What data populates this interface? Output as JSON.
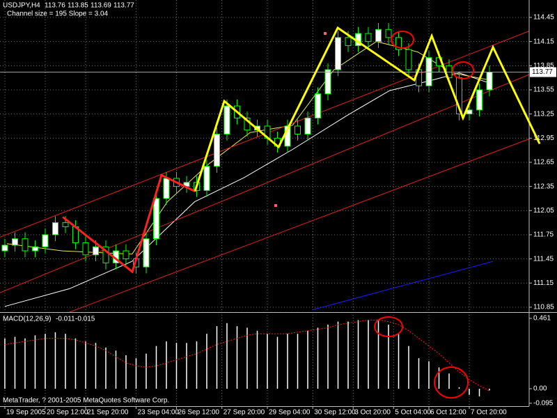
{
  "chart_data": {
    "type": "candlestick",
    "title": "USDJPY,H4",
    "header_values": [
      113.76,
      113.85,
      113.69,
      113.77
    ],
    "subtitle": "Channel size = 195 Slope = 3.04",
    "footer": "MetaTrader, ? 2001-2005 MetaQuotes Software Corp.",
    "up_color": "#ffffff",
    "down_color": "#000000",
    "wick_color": "#00ff00",
    "grid": true,
    "x": [
      0,
      1,
      2,
      3,
      4,
      5,
      6,
      7,
      8,
      9,
      10,
      11,
      12,
      13,
      14,
      15,
      16,
      17,
      18,
      19,
      20,
      21,
      22,
      23,
      24,
      25,
      26,
      27,
      28,
      29,
      30,
      31,
      32,
      33,
      34,
      35,
      36,
      37,
      38,
      39,
      40,
      41,
      42,
      43,
      44,
      45,
      46,
      47,
      48
    ],
    "open": [
      111.55,
      111.62,
      111.7,
      111.55,
      111.6,
      111.75,
      111.9,
      111.85,
      111.65,
      111.5,
      111.6,
      111.4,
      111.55,
      111.45,
      111.35,
      111.7,
      112.2,
      112.45,
      112.35,
      112.4,
      112.3,
      112.6,
      113.0,
      113.35,
      113.2,
      113.05,
      113.1,
      112.95,
      112.85,
      113.1,
      113.0,
      113.2,
      113.5,
      113.8,
      114.2,
      114.1,
      114.25,
      114.15,
      114.3,
      114.2,
      114.05,
      113.8,
      113.6,
      113.95,
      113.85,
      113.7,
      113.25,
      113.3,
      113.55
    ],
    "high": [
      111.7,
      111.78,
      111.78,
      111.68,
      111.83,
      111.98,
      111.98,
      111.93,
      111.73,
      111.68,
      111.68,
      111.63,
      111.63,
      111.53,
      111.78,
      112.28,
      112.53,
      112.53,
      112.48,
      112.48,
      112.68,
      113.08,
      113.43,
      113.43,
      113.28,
      113.18,
      113.18,
      113.03,
      113.18,
      113.18,
      113.28,
      113.58,
      113.88,
      114.28,
      114.28,
      114.33,
      114.33,
      114.38,
      114.38,
      114.28,
      114.13,
      113.88,
      114.03,
      114.03,
      113.93,
      113.78,
      113.38,
      113.63,
      113.85
    ],
    "low": [
      111.47,
      111.54,
      111.47,
      111.47,
      111.52,
      111.67,
      111.77,
      111.57,
      111.42,
      111.42,
      111.32,
      111.32,
      111.37,
      111.27,
      111.27,
      111.62,
      112.12,
      112.27,
      112.27,
      112.22,
      112.22,
      112.52,
      112.92,
      113.12,
      112.97,
      112.97,
      112.87,
      112.77,
      112.77,
      112.92,
      112.92,
      113.12,
      113.42,
      113.72,
      114.02,
      114.02,
      114.07,
      114.07,
      114.12,
      113.97,
      113.72,
      113.52,
      113.52,
      113.77,
      113.62,
      113.17,
      113.17,
      113.22,
      113.47
    ],
    "close": [
      111.62,
      111.7,
      111.55,
      111.6,
      111.75,
      111.9,
      111.85,
      111.65,
      111.5,
      111.6,
      111.4,
      111.55,
      111.45,
      111.35,
      111.7,
      112.2,
      112.45,
      112.35,
      112.4,
      112.3,
      112.6,
      113.0,
      113.35,
      113.2,
      113.05,
      113.1,
      112.95,
      112.85,
      113.1,
      113.0,
      113.2,
      113.5,
      113.8,
      114.2,
      114.1,
      114.25,
      114.15,
      114.3,
      114.2,
      114.05,
      113.8,
      113.6,
      113.95,
      113.85,
      113.7,
      113.25,
      113.3,
      113.55,
      113.77
    ],
    "last_price": 113.77,
    "xlim": [
      -0.48,
      51.93
    ],
    "xticks": [
      {
        "value": 0,
        "label": "19 Sep 2005"
      },
      {
        "value": 4,
        "label": "20 Sep 12:00"
      },
      {
        "value": 8,
        "label": "21 Sep 20:00"
      },
      {
        "value": 13,
        "label": "23 Sep 04:00"
      },
      {
        "value": 17,
        "label": "26 Sep 12:00"
      },
      {
        "value": 21.5,
        "label": "27 Sep 20:00"
      },
      {
        "value": 26,
        "label": "29 Sep 04:00"
      },
      {
        "value": 30.5,
        "label": "30 Sep 12:00"
      },
      {
        "value": 34.5,
        "label": "3 Oct 20:00"
      },
      {
        "value": 38.5,
        "label": "5 Oct 04:00"
      },
      {
        "value": 42,
        "label": "6 Oct 12:00"
      },
      {
        "value": 46,
        "label": "7 Oct 20:00"
      }
    ],
    "ylim": [
      110.789,
      114.666
    ],
    "yticks": [
      114.45,
      114.15,
      113.85,
      113.55,
      113.25,
      112.95,
      112.65,
      112.35,
      112.05,
      111.75,
      111.45,
      111.15,
      110.85
    ],
    "lines": [
      {
        "color": "#ffffff",
        "x": [
          0,
          6.4,
          12.6,
          18.8,
          23.7,
          28.5,
          34.0,
          38.1,
          42.3,
          45.0,
          48.1
        ],
        "values": [
          110.86,
          111.08,
          111.42,
          112.16,
          112.46,
          112.81,
          113.24,
          113.54,
          113.67,
          113.76,
          113.63
        ]
      },
      {
        "color": "#e6e65a",
        "x": [
          0.2,
          5.7,
          12.6,
          16.1,
          20.2,
          24.3,
          28.5,
          32.6,
          36.8,
          40.9,
          44.3,
          48.1
        ],
        "values": [
          111.64,
          111.55,
          111.51,
          112.16,
          112.63,
          113.02,
          113.11,
          113.8,
          114.15,
          114.02,
          113.76,
          113.67
        ]
      },
      {
        "color": "#e02020",
        "x": [
          -0.48,
          51.93
        ],
        "values": [
          111.72,
          114.28
        ]
      },
      {
        "color": "#e02020",
        "x": [
          -0.48,
          51.93
        ],
        "values": [
          111.03,
          113.74
        ]
      },
      {
        "color": "#e02020",
        "x": [
          6.42,
          51.93
        ],
        "values": [
          110.79,
          112.94
        ]
      },
      {
        "color": "#1a1aff",
        "x": [
          30.55,
          48.35
        ],
        "values": [
          110.82,
          111.42
        ]
      }
    ],
    "zigzags": [
      {
        "color": "#ff2020",
        "x": [
          5.73,
          12.62,
          15.52,
          18.83
        ],
        "values": [
          111.97,
          111.29,
          112.49,
          112.29
        ]
      },
      {
        "color": "#ffff00",
        "x": [
          18.83,
          21.73,
          27.11,
          32.97,
          40.55,
          42.28,
          45.38,
          48.35,
          52.97
        ],
        "values": [
          112.29,
          113.41,
          112.84,
          114.32,
          113.67,
          114.22,
          113.2,
          114.08,
          112.88
        ]
      }
    ],
    "macd": {
      "title": "MACD(12,26,9)",
      "main_value": -0.011,
      "signal_value": -0.015,
      "bar_color": "#ffffff",
      "signal_color": "#ff2020",
      "ylim": [
        -0.114,
        0.4975
      ],
      "yticks": [
        0.461,
        {
          "value": 0,
          "label": "0.00"
        },
        -0.095
      ],
      "histogram": [
        0.33,
        0.34,
        0.33,
        0.35,
        0.36,
        0.37,
        0.36,
        0.33,
        0.31,
        0.3,
        0.27,
        0.25,
        0.22,
        0.2,
        0.23,
        0.28,
        0.31,
        0.3,
        0.3,
        0.31,
        0.36,
        0.41,
        0.43,
        0.41,
        0.4,
        0.38,
        0.36,
        0.34,
        0.36,
        0.36,
        0.38,
        0.4,
        0.42,
        0.44,
        0.44,
        0.45,
        0.45,
        0.45,
        0.42,
        0.36,
        0.28,
        0.2,
        0.18,
        0.14,
        0.1,
        0.01,
        -0.04,
        -0.05,
        -0.011
      ],
      "signal": [
        0.29,
        0.3,
        0.31,
        0.32,
        0.33,
        0.33,
        0.33,
        0.32,
        0.3,
        0.28,
        0.25,
        0.21,
        0.17,
        0.15,
        0.14,
        0.15,
        0.17,
        0.19,
        0.21,
        0.23,
        0.26,
        0.29,
        0.31,
        0.33,
        0.35,
        0.36,
        0.36,
        0.36,
        0.36,
        0.37,
        0.38,
        0.39,
        0.4,
        0.42,
        0.43,
        0.44,
        0.45,
        0.45,
        0.44,
        0.42,
        0.38,
        0.33,
        0.28,
        0.23,
        0.17,
        0.11,
        0.06,
        0.02,
        -0.015
      ]
    }
  }
}
